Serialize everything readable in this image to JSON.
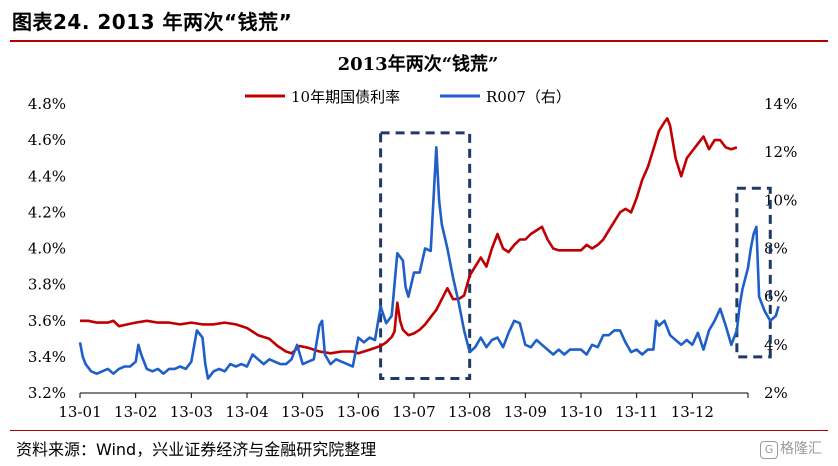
{
  "figure": {
    "title": "图表24. 2013 年两次“钱荒”",
    "source": "资料来源：Wind，兴业证券经济与金融研究院整理",
    "watermark": "格隆汇",
    "watermark_icon": "g-logo-icon"
  },
  "chart_data": {
    "type": "line",
    "title": "2013年两次“钱荒”",
    "xlabel": "",
    "ylabel_left": "",
    "ylabel_right": "",
    "x_ticks": [
      "13-01",
      "13-02",
      "13-03",
      "13-04",
      "13-05",
      "13-06",
      "13-07",
      "13-08",
      "13-09",
      "13-10",
      "13-11",
      "13-12"
    ],
    "y_left": {
      "range": [
        3.2,
        4.8
      ],
      "ticks": [
        "3.2%",
        "3.4%",
        "3.6%",
        "3.8%",
        "4.0%",
        "4.2%",
        "4.4%",
        "4.6%",
        "4.8%"
      ]
    },
    "y_right": {
      "range": [
        2,
        14
      ],
      "ticks": [
        "2%",
        "4%",
        "6%",
        "8%",
        "10%",
        "12%",
        "14%"
      ]
    },
    "legend": {
      "position": "top-center"
    },
    "grid": false,
    "series": [
      {
        "name": "10年期国债利率",
        "axis": "left",
        "color": "#c00000",
        "points": [
          [
            0,
            3.6
          ],
          [
            0.15,
            3.6
          ],
          [
            0.3,
            3.59
          ],
          [
            0.5,
            3.59
          ],
          [
            0.6,
            3.6
          ],
          [
            0.7,
            3.57
          ],
          [
            0.85,
            3.58
          ],
          [
            1.0,
            3.59
          ],
          [
            1.2,
            3.6
          ],
          [
            1.4,
            3.59
          ],
          [
            1.6,
            3.59
          ],
          [
            1.8,
            3.58
          ],
          [
            2.0,
            3.59
          ],
          [
            2.2,
            3.58
          ],
          [
            2.4,
            3.58
          ],
          [
            2.6,
            3.59
          ],
          [
            2.8,
            3.58
          ],
          [
            3.0,
            3.56
          ],
          [
            3.2,
            3.52
          ],
          [
            3.4,
            3.5
          ],
          [
            3.55,
            3.46
          ],
          [
            3.7,
            3.43
          ],
          [
            3.8,
            3.42
          ],
          [
            3.95,
            3.46
          ],
          [
            4.1,
            3.45
          ],
          [
            4.3,
            3.43
          ],
          [
            4.5,
            3.42
          ],
          [
            4.7,
            3.43
          ],
          [
            4.9,
            3.43
          ],
          [
            5.0,
            3.42
          ],
          [
            5.2,
            3.44
          ],
          [
            5.4,
            3.46
          ],
          [
            5.5,
            3.48
          ],
          [
            5.6,
            3.51
          ],
          [
            5.65,
            3.54
          ],
          [
            5.7,
            3.7
          ],
          [
            5.75,
            3.6
          ],
          [
            5.8,
            3.55
          ],
          [
            5.9,
            3.52
          ],
          [
            6.0,
            3.53
          ],
          [
            6.1,
            3.55
          ],
          [
            6.2,
            3.58
          ],
          [
            6.3,
            3.62
          ],
          [
            6.4,
            3.66
          ],
          [
            6.5,
            3.72
          ],
          [
            6.6,
            3.78
          ],
          [
            6.7,
            3.72
          ],
          [
            6.8,
            3.72
          ],
          [
            6.9,
            3.74
          ],
          [
            7.0,
            3.85
          ],
          [
            7.1,
            3.9
          ],
          [
            7.2,
            3.95
          ],
          [
            7.3,
            3.9
          ],
          [
            7.4,
            4.0
          ],
          [
            7.5,
            4.08
          ],
          [
            7.6,
            4.0
          ],
          [
            7.7,
            3.98
          ],
          [
            7.8,
            4.02
          ],
          [
            7.9,
            4.05
          ],
          [
            8.0,
            4.05
          ],
          [
            8.1,
            4.08
          ],
          [
            8.2,
            4.1
          ],
          [
            8.3,
            4.12
          ],
          [
            8.4,
            4.05
          ],
          [
            8.5,
            4.0
          ],
          [
            8.6,
            3.99
          ],
          [
            8.8,
            3.99
          ],
          [
            9.0,
            3.99
          ],
          [
            9.1,
            4.02
          ],
          [
            9.2,
            4.0
          ],
          [
            9.3,
            4.02
          ],
          [
            9.4,
            4.05
          ],
          [
            9.5,
            4.1
          ],
          [
            9.6,
            4.15
          ],
          [
            9.7,
            4.2
          ],
          [
            9.8,
            4.22
          ],
          [
            9.9,
            4.2
          ],
          [
            10.0,
            4.28
          ],
          [
            10.1,
            4.38
          ],
          [
            10.2,
            4.45
          ],
          [
            10.3,
            4.55
          ],
          [
            10.4,
            4.65
          ],
          [
            10.5,
            4.7
          ],
          [
            10.55,
            4.72
          ],
          [
            10.6,
            4.68
          ],
          [
            10.7,
            4.5
          ],
          [
            10.8,
            4.4
          ],
          [
            10.9,
            4.5
          ],
          [
            11.0,
            4.54
          ],
          [
            11.1,
            4.58
          ],
          [
            11.2,
            4.62
          ],
          [
            11.3,
            4.55
          ],
          [
            11.4,
            4.6
          ],
          [
            11.5,
            4.6
          ],
          [
            11.6,
            4.56
          ],
          [
            11.7,
            4.55
          ],
          [
            11.8,
            4.56
          ]
        ]
      },
      {
        "name": "R007（右）",
        "axis": "right",
        "color": "#1f5fc8",
        "points": [
          [
            0,
            4.1
          ],
          [
            0.05,
            3.5
          ],
          [
            0.1,
            3.2
          ],
          [
            0.2,
            2.9
          ],
          [
            0.3,
            2.8
          ],
          [
            0.4,
            2.9
          ],
          [
            0.5,
            3.0
          ],
          [
            0.6,
            2.8
          ],
          [
            0.7,
            3.0
          ],
          [
            0.8,
            3.1
          ],
          [
            0.9,
            3.1
          ],
          [
            1.0,
            3.3
          ],
          [
            1.05,
            4.0
          ],
          [
            1.1,
            3.6
          ],
          [
            1.2,
            3.0
          ],
          [
            1.3,
            2.9
          ],
          [
            1.4,
            3.0
          ],
          [
            1.5,
            2.8
          ],
          [
            1.6,
            3.0
          ],
          [
            1.7,
            3.0
          ],
          [
            1.8,
            3.1
          ],
          [
            1.9,
            3.0
          ],
          [
            2.0,
            3.3
          ],
          [
            2.1,
            4.6
          ],
          [
            2.2,
            4.3
          ],
          [
            2.25,
            3.2
          ],
          [
            2.3,
            2.6
          ],
          [
            2.4,
            2.9
          ],
          [
            2.5,
            3.0
          ],
          [
            2.6,
            2.9
          ],
          [
            2.7,
            3.2
          ],
          [
            2.8,
            3.1
          ],
          [
            2.9,
            3.2
          ],
          [
            3.0,
            3.1
          ],
          [
            3.1,
            3.6
          ],
          [
            3.2,
            3.4
          ],
          [
            3.3,
            3.2
          ],
          [
            3.4,
            3.4
          ],
          [
            3.5,
            3.3
          ],
          [
            3.6,
            3.2
          ],
          [
            3.7,
            3.2
          ],
          [
            3.8,
            3.4
          ],
          [
            3.9,
            4.0
          ],
          [
            4.0,
            3.2
          ],
          [
            4.1,
            3.3
          ],
          [
            4.2,
            3.4
          ],
          [
            4.3,
            4.8
          ],
          [
            4.35,
            5.0
          ],
          [
            4.4,
            3.6
          ],
          [
            4.5,
            3.2
          ],
          [
            4.6,
            3.4
          ],
          [
            4.7,
            3.3
          ],
          [
            4.8,
            3.2
          ],
          [
            4.9,
            3.1
          ],
          [
            5.0,
            4.3
          ],
          [
            5.1,
            4.1
          ],
          [
            5.2,
            4.3
          ],
          [
            5.3,
            4.2
          ],
          [
            5.4,
            5.6
          ],
          [
            5.5,
            4.9
          ],
          [
            5.6,
            5.2
          ],
          [
            5.7,
            7.8
          ],
          [
            5.8,
            7.5
          ],
          [
            5.85,
            6.4
          ],
          [
            5.9,
            6.0
          ],
          [
            6.0,
            7.0
          ],
          [
            6.1,
            7.0
          ],
          [
            6.2,
            8.0
          ],
          [
            6.3,
            7.9
          ],
          [
            6.4,
            12.2
          ],
          [
            6.45,
            10.0
          ],
          [
            6.5,
            9.0
          ],
          [
            6.6,
            8.0
          ],
          [
            6.7,
            6.8
          ],
          [
            6.8,
            5.8
          ],
          [
            6.9,
            4.6
          ],
          [
            7.0,
            3.7
          ],
          [
            7.1,
            3.9
          ],
          [
            7.2,
            4.3
          ],
          [
            7.3,
            3.9
          ],
          [
            7.4,
            4.2
          ],
          [
            7.5,
            4.3
          ],
          [
            7.6,
            3.9
          ],
          [
            7.7,
            4.5
          ],
          [
            7.8,
            5.0
          ],
          [
            7.9,
            4.9
          ],
          [
            8.0,
            4.0
          ],
          [
            8.1,
            3.9
          ],
          [
            8.2,
            4.2
          ],
          [
            8.3,
            4.0
          ],
          [
            8.4,
            3.8
          ],
          [
            8.5,
            3.6
          ],
          [
            8.6,
            3.8
          ],
          [
            8.7,
            3.6
          ],
          [
            8.8,
            3.8
          ],
          [
            8.9,
            3.8
          ],
          [
            9.0,
            3.8
          ],
          [
            9.1,
            3.6
          ],
          [
            9.2,
            4.0
          ],
          [
            9.3,
            3.9
          ],
          [
            9.4,
            4.4
          ],
          [
            9.5,
            4.4
          ],
          [
            9.6,
            4.6
          ],
          [
            9.7,
            4.6
          ],
          [
            9.8,
            4.1
          ],
          [
            9.9,
            3.7
          ],
          [
            10.0,
            3.8
          ],
          [
            10.1,
            3.6
          ],
          [
            10.2,
            3.8
          ],
          [
            10.3,
            3.8
          ],
          [
            10.35,
            5.0
          ],
          [
            10.4,
            4.8
          ],
          [
            10.5,
            5.0
          ],
          [
            10.6,
            4.4
          ],
          [
            10.7,
            4.2
          ],
          [
            10.8,
            4.0
          ],
          [
            10.9,
            4.2
          ],
          [
            11.0,
            4.0
          ],
          [
            11.1,
            4.5
          ],
          [
            11.2,
            3.8
          ],
          [
            11.3,
            4.6
          ],
          [
            11.4,
            5.0
          ],
          [
            11.5,
            5.5
          ],
          [
            11.6,
            4.8
          ],
          [
            11.7,
            4.0
          ],
          [
            11.8,
            4.6
          ],
          [
            11.85,
            5.6
          ],
          [
            11.9,
            6.3
          ],
          [
            12.0,
            7.2
          ],
          [
            12.05,
            8.0
          ],
          [
            12.1,
            8.6
          ],
          [
            12.15,
            8.9
          ],
          [
            12.2,
            6.0
          ],
          [
            12.3,
            5.4
          ],
          [
            12.4,
            5.0
          ],
          [
            12.5,
            5.2
          ],
          [
            12.55,
            5.6
          ]
        ]
      }
    ],
    "annotations": [
      {
        "type": "dashed-box",
        "x_range": [
          5.4,
          7.0
        ],
        "y_right_range": [
          2.6,
          12.8
        ]
      },
      {
        "type": "dashed-box",
        "x_range": [
          11.8,
          12.4
        ],
        "y_right_range": [
          3.5,
          10.5
        ]
      }
    ]
  }
}
